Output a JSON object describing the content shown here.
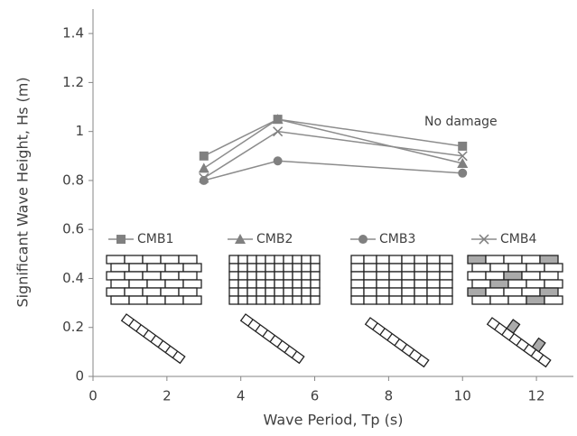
{
  "chart_data": {
    "type": "line",
    "x_label": "Wave Period, Tp (s)",
    "y_label": "Significant Wave Height, Hs (m)",
    "xlim": [
      0,
      13
    ],
    "xticks": [
      0,
      2,
      4,
      6,
      8,
      10,
      12
    ],
    "ylim": [
      0,
      1.5
    ],
    "yticks": [
      0,
      0.2,
      0.4,
      0.6,
      0.8,
      1,
      1.2,
      1.4
    ],
    "x": [
      3,
      5,
      10
    ],
    "series": [
      {
        "name": "CMB1",
        "color": "#808080",
        "marker": "square",
        "values": [
          0.9,
          1.05,
          0.94
        ]
      },
      {
        "name": "CMB2",
        "color": "#808080",
        "marker": "triangle",
        "values": [
          0.85,
          1.05,
          0.87
        ]
      },
      {
        "name": "CMB3",
        "color": "#808080",
        "marker": "circle",
        "values": [
          0.8,
          0.88,
          0.83
        ]
      },
      {
        "name": "CMB4",
        "color": "#808080",
        "marker": "cross",
        "values": [
          0.81,
          1.0,
          0.9
        ]
      }
    ],
    "annotation": "No damage"
  }
}
